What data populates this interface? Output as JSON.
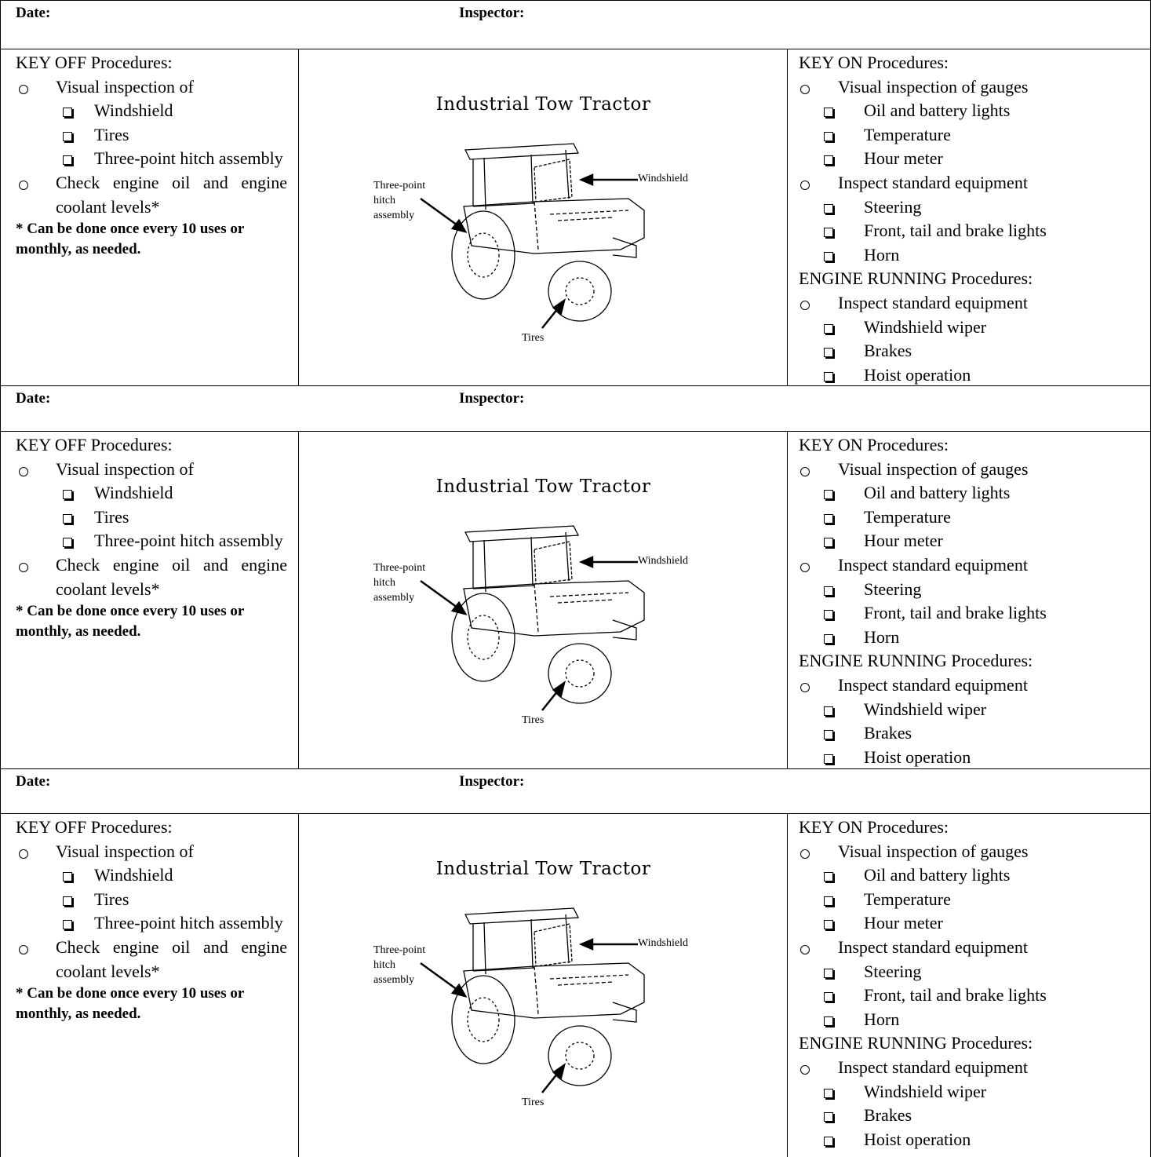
{
  "blocks": [
    {
      "date_label": "Date:",
      "inspector_label": "Inspector:",
      "key_off": {
        "heading": "KEY OFF Procedures:",
        "items": [
          {
            "text": "Visual inspection of",
            "sub": [
              "Windshield",
              "Tires",
              "Three-point hitch assembly"
            ]
          },
          {
            "text": "Check engine oil and engine coolant levels*"
          }
        ],
        "note": "* Can be done once every 10 uses or monthly, as needed."
      },
      "figure": {
        "title": "Industrial Tow Tractor",
        "hitch": "Three-point hitch assembly",
        "windshield": "Windshield",
        "tires": "Tires"
      },
      "key_on": {
        "heading": "KEY ON Procedures:",
        "items": [
          {
            "text": "Visual inspection of gauges",
            "sub": [
              "Oil and battery lights",
              "Temperature",
              "Hour meter"
            ]
          },
          {
            "text": "Inspect standard equipment",
            "sub": [
              "Steering",
              "Front, tail and brake lights",
              "Horn"
            ]
          }
        ]
      },
      "engine_running": {
        "heading": "ENGINE RUNNING Procedures:",
        "items": [
          {
            "text": "Inspect standard equipment",
            "sub": [
              "Windshield wiper",
              "Brakes",
              "Hoist operation"
            ]
          }
        ]
      }
    },
    {
      "date_label": "Date:",
      "inspector_label": "Inspector:",
      "key_off": {
        "heading": "KEY OFF Procedures:",
        "items": [
          {
            "text": "Visual inspection of",
            "sub": [
              "Windshield",
              "Tires",
              "Three-point hitch assembly"
            ]
          },
          {
            "text": "Check engine oil and engine coolant levels*"
          }
        ],
        "note": "* Can be done once every 10 uses or monthly, as needed."
      },
      "figure": {
        "title": "Industrial Tow Tractor",
        "hitch": "Three-point hitch assembly",
        "windshield": "Windshield",
        "tires": "Tires"
      },
      "key_on": {
        "heading": "KEY ON Procedures:",
        "items": [
          {
            "text": "Visual inspection of gauges",
            "sub": [
              "Oil and battery lights",
              "Temperature",
              "Hour meter"
            ]
          },
          {
            "text": "Inspect standard equipment",
            "sub": [
              "Steering",
              "Front, tail and brake lights",
              "Horn"
            ]
          }
        ]
      },
      "engine_running": {
        "heading": "ENGINE RUNNING Procedures:",
        "items": [
          {
            "text": "Inspect standard equipment",
            "sub": [
              "Windshield wiper",
              "Brakes",
              "Hoist operation"
            ]
          }
        ]
      }
    },
    {
      "date_label": "Date:",
      "inspector_label": "Inspector:",
      "key_off": {
        "heading": "KEY OFF Procedures:",
        "items": [
          {
            "text": "Visual inspection of",
            "sub": [
              "Windshield",
              "Tires",
              "Three-point hitch assembly"
            ]
          },
          {
            "text": "Check engine oil and engine coolant levels*"
          }
        ],
        "note": "* Can be done once every 10 uses or monthly, as needed."
      },
      "figure": {
        "title": "Industrial Tow Tractor",
        "hitch": "Three-point hitch assembly",
        "windshield": "Windshield",
        "tires": "Tires"
      },
      "key_on": {
        "heading": "KEY ON Procedures:",
        "items": [
          {
            "text": "Visual inspection of gauges",
            "sub": [
              "Oil and battery lights",
              "Temperature",
              "Hour meter"
            ]
          },
          {
            "text": "Inspect standard equipment",
            "sub": [
              "Steering",
              "Front, tail and brake lights",
              "Horn"
            ]
          }
        ]
      },
      "engine_running": {
        "heading": "ENGINE RUNNING Procedures:",
        "items": [
          {
            "text": "Inspect standard equipment",
            "sub": [
              "Windshield wiper",
              "Brakes",
              "Hoist operation"
            ]
          }
        ]
      }
    }
  ]
}
